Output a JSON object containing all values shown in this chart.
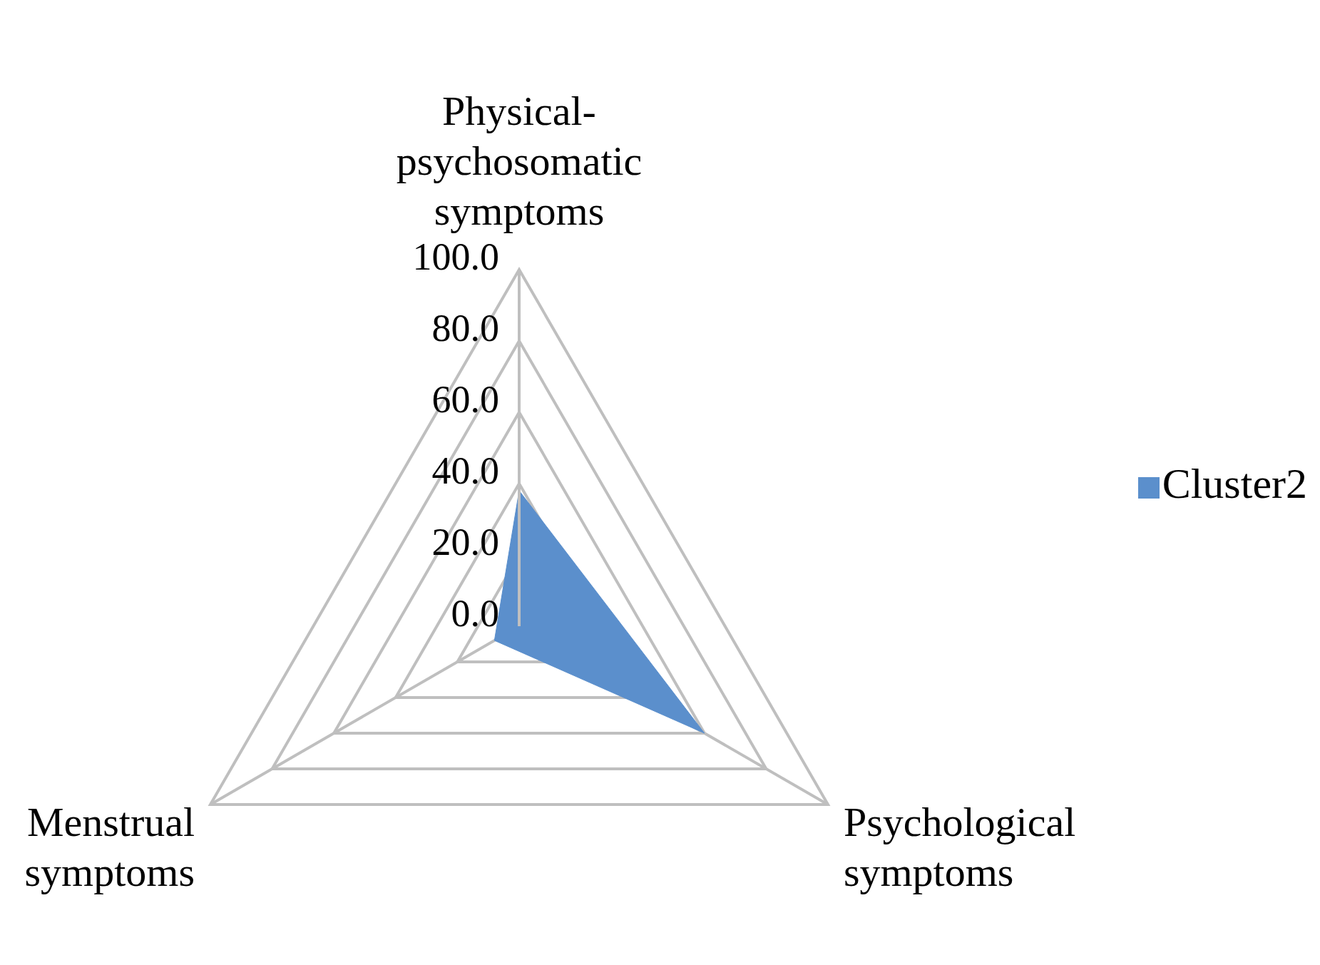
{
  "chart_data": {
    "type": "radar",
    "categories": [
      "Physical-psychosomatic symptoms",
      "Psychological symptoms",
      "Menstrual symptoms"
    ],
    "series": [
      {
        "name": "Cluster2",
        "color": "#5b8fcc",
        "values": [
          38,
          60,
          8
        ]
      }
    ],
    "ylim": [
      0,
      100
    ],
    "yticks": [
      {
        "value": 0,
        "label": "0.0"
      },
      {
        "value": 20,
        "label": "20.0"
      },
      {
        "value": 40,
        "label": "40.0"
      },
      {
        "value": 60,
        "label": "60.0"
      },
      {
        "value": 80,
        "label": "80.0"
      },
      {
        "value": 100,
        "label": "100.0"
      }
    ],
    "grid": true,
    "legend": "right"
  }
}
